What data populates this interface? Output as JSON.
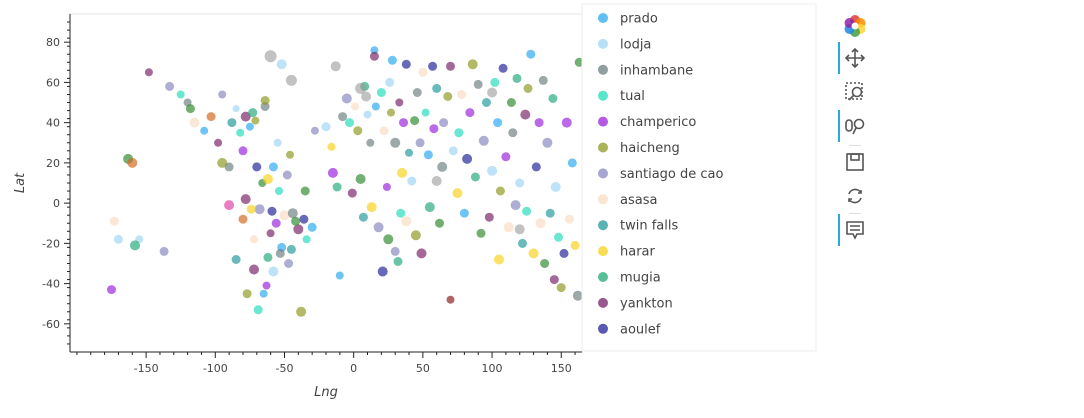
{
  "chart_data": {
    "type": "scatter",
    "xlabel": "Lng",
    "ylabel": "Lat",
    "xlim": [
      -205,
      165
    ],
    "ylim": [
      -74,
      94
    ],
    "xticks": [
      -150,
      -100,
      -50,
      0,
      50,
      100,
      150
    ],
    "yticks": [
      -60,
      -40,
      -20,
      0,
      20,
      40,
      60,
      80
    ],
    "legend_position": "right",
    "series": [
      {
        "name": "prado",
        "color": "#29aaf0"
      },
      {
        "name": "lodja",
        "color": "#9fd6f5"
      },
      {
        "name": "inhambane",
        "color": "#6e7f80"
      },
      {
        "name": "tual",
        "color": "#22dcbb"
      },
      {
        "name": "champerico",
        "color": "#9922dd"
      },
      {
        "name": "haicheng",
        "color": "#8e9a1f"
      },
      {
        "name": "santiago de cao",
        "color": "#8888c0"
      },
      {
        "name": "asasa",
        "color": "#f8dcc2"
      },
      {
        "name": "twin falls",
        "color": "#229999"
      },
      {
        "name": "harar",
        "color": "#f8d21a"
      },
      {
        "name": "mugia",
        "color": "#22aa77"
      },
      {
        "name": "yankton",
        "color": "#772266"
      },
      {
        "name": "aoulef",
        "color": "#222299"
      }
    ],
    "extra_colors": [
      "#2e8b2e",
      "#8b1a1a",
      "#e040a0",
      "#d2691e",
      "#c2185b",
      "#5a3d2b",
      "#a0522d",
      "#66aa66",
      "#7b1fa2",
      "#b0a090",
      "#ff6f61",
      "#3b7f5f"
    ],
    "points": [
      [
        15,
        76,
        8,
        0
      ],
      [
        -175,
        -43,
        9,
        4
      ],
      [
        -148,
        65,
        8,
        11
      ],
      [
        -133,
        58,
        9,
        6
      ],
      [
        -163,
        22,
        10,
        13
      ],
      [
        -160,
        20,
        10,
        16
      ],
      [
        -155,
        -18,
        8,
        1
      ],
      [
        -170,
        -18,
        9,
        1
      ],
      [
        -173,
        -9,
        9,
        7
      ],
      [
        -158,
        -21,
        10,
        10
      ],
      [
        -137,
        -24,
        9,
        6
      ],
      [
        -125,
        54,
        8,
        3
      ],
      [
        -120,
        50,
        8,
        2
      ],
      [
        -118,
        47,
        9,
        13
      ],
      [
        -115,
        40,
        10,
        7
      ],
      [
        -108,
        36,
        8,
        0
      ],
      [
        -103,
        43,
        9,
        16
      ],
      [
        -98,
        30,
        8,
        11
      ],
      [
        -95,
        20,
        10,
        5
      ],
      [
        -90,
        18,
        9,
        2
      ],
      [
        -88,
        40,
        9,
        8
      ],
      [
        -85,
        47,
        7,
        1
      ],
      [
        -82,
        35,
        8,
        3
      ],
      [
        -80,
        26,
        9,
        4
      ],
      [
        -78,
        43,
        10,
        11
      ],
      [
        -75,
        38,
        8,
        0
      ],
      [
        -73,
        45,
        9,
        10
      ],
      [
        -71,
        41,
        8,
        5
      ],
      [
        -70,
        18,
        9,
        12
      ],
      [
        -68,
        -3,
        10,
        6
      ],
      [
        -66,
        10,
        8,
        13
      ],
      [
        -64,
        48,
        9,
        2
      ],
      [
        -62,
        12,
        10,
        9
      ],
      [
        -60,
        -15,
        8,
        11
      ],
      [
        -58,
        -34,
        10,
        1
      ],
      [
        -56,
        -10,
        9,
        4
      ],
      [
        -54,
        6,
        8,
        3
      ],
      [
        -52,
        -22,
        9,
        0
      ],
      [
        -50,
        -6,
        10,
        7
      ],
      [
        -48,
        14,
        9,
        6
      ],
      [
        -46,
        24,
        8,
        5
      ],
      [
        -45,
        -23,
        9,
        8
      ],
      [
        -44,
        -5,
        10,
        2
      ],
      [
        -40,
        -13,
        10,
        11
      ],
      [
        -38,
        -54,
        10,
        5
      ],
      [
        -36,
        -8,
        9,
        12
      ],
      [
        -35,
        6,
        9,
        13
      ],
      [
        -34,
        -18,
        8,
        3
      ],
      [
        -30,
        -12,
        9,
        0
      ],
      [
        -28,
        36,
        8,
        6
      ],
      [
        -20,
        38,
        9,
        1
      ],
      [
        -16,
        28,
        8,
        9
      ],
      [
        -15,
        15,
        10,
        4
      ],
      [
        -12,
        8,
        9,
        10
      ],
      [
        -10,
        -36,
        8,
        0
      ],
      [
        -8,
        43,
        9,
        2
      ],
      [
        -5,
        52,
        10,
        6
      ],
      [
        -3,
        40,
        9,
        3
      ],
      [
        -1,
        5,
        9,
        11
      ],
      [
        1,
        48,
        8,
        7
      ],
      [
        3,
        36,
        9,
        5
      ],
      [
        5,
        12,
        10,
        13
      ],
      [
        7,
        -7,
        9,
        8
      ],
      [
        8,
        58,
        9,
        10
      ],
      [
        10,
        44,
        8,
        1
      ],
      [
        12,
        30,
        8,
        2
      ],
      [
        13,
        -2,
        10,
        9
      ],
      [
        15,
        73,
        9,
        11
      ],
      [
        16,
        48,
        8,
        0
      ],
      [
        18,
        -12,
        10,
        6
      ],
      [
        20,
        55,
        9,
        3
      ],
      [
        21,
        -34,
        10,
        12
      ],
      [
        22,
        36,
        9,
        7
      ],
      [
        24,
        8,
        8,
        4
      ],
      [
        25,
        -18,
        10,
        13
      ],
      [
        26,
        60,
        9,
        1
      ],
      [
        27,
        45,
        8,
        5
      ],
      [
        28,
        71,
        9,
        0
      ],
      [
        30,
        30,
        10,
        2
      ],
      [
        30,
        -24,
        9,
        6
      ],
      [
        32,
        -29,
        9,
        10
      ],
      [
        33,
        50,
        8,
        11
      ],
      [
        34,
        -5,
        9,
        3
      ],
      [
        35,
        15,
        10,
        9
      ],
      [
        36,
        40,
        9,
        4
      ],
      [
        38,
        69,
        9,
        12
      ],
      [
        38,
        -9,
        10,
        7
      ],
      [
        40,
        25,
        8,
        8
      ],
      [
        42,
        11,
        9,
        1
      ],
      [
        44,
        41,
        9,
        13
      ],
      [
        45,
        -16,
        10,
        5
      ],
      [
        46,
        55,
        9,
        2
      ],
      [
        48,
        30,
        9,
        6
      ],
      [
        49,
        -25,
        10,
        11
      ],
      [
        50,
        65,
        9,
        7
      ],
      [
        52,
        45,
        8,
        3
      ],
      [
        54,
        24,
        9,
        0
      ],
      [
        55,
        -2,
        10,
        10
      ],
      [
        57,
        68,
        9,
        12
      ],
      [
        58,
        37,
        9,
        4
      ],
      [
        60,
        57,
        9,
        8
      ],
      [
        62,
        -10,
        9,
        13
      ],
      [
        64,
        18,
        10,
        2
      ],
      [
        65,
        40,
        9,
        6
      ],
      [
        68,
        53,
        9,
        5
      ],
      [
        70,
        -48,
        8,
        14
      ],
      [
        70,
        68,
        9,
        11
      ],
      [
        72,
        26,
        9,
        1
      ],
      [
        75,
        5,
        10,
        9
      ],
      [
        76,
        35,
        9,
        3
      ],
      [
        78,
        54,
        9,
        7
      ],
      [
        80,
        -5,
        9,
        0
      ],
      [
        82,
        22,
        10,
        12
      ],
      [
        84,
        45,
        9,
        4
      ],
      [
        86,
        69,
        10,
        5
      ],
      [
        88,
        13,
        9,
        10
      ],
      [
        90,
        59,
        9,
        2
      ],
      [
        92,
        -15,
        9,
        13
      ],
      [
        94,
        31,
        10,
        6
      ],
      [
        96,
        50,
        9,
        8
      ],
      [
        98,
        -7,
        9,
        11
      ],
      [
        100,
        16,
        10,
        1
      ],
      [
        102,
        60,
        9,
        3
      ],
      [
        104,
        40,
        9,
        0
      ],
      [
        105,
        -28,
        10,
        9
      ],
      [
        106,
        6,
        9,
        5
      ],
      [
        108,
        67,
        9,
        12
      ],
      [
        110,
        23,
        9,
        4
      ],
      [
        112,
        -12,
        10,
        7
      ],
      [
        114,
        50,
        9,
        13
      ],
      [
        115,
        35,
        9,
        2
      ],
      [
        117,
        -1,
        10,
        6
      ],
      [
        118,
        62,
        9,
        10
      ],
      [
        120,
        10,
        9,
        1
      ],
      [
        122,
        -20,
        9,
        8
      ],
      [
        124,
        44,
        10,
        11
      ],
      [
        125,
        -4,
        9,
        3
      ],
      [
        126,
        57,
        9,
        5
      ],
      [
        128,
        74,
        9,
        0
      ],
      [
        130,
        -25,
        10,
        9
      ],
      [
        132,
        18,
        9,
        12
      ],
      [
        134,
        40,
        9,
        4
      ],
      [
        135,
        -10,
        10,
        7
      ],
      [
        137,
        61,
        9,
        2
      ],
      [
        138,
        -30,
        9,
        13
      ],
      [
        140,
        30,
        10,
        6
      ],
      [
        142,
        -5,
        9,
        8
      ],
      [
        144,
        52,
        9,
        10
      ],
      [
        145,
        -38,
        9,
        11
      ],
      [
        146,
        8,
        10,
        1
      ],
      [
        148,
        -17,
        9,
        3
      ],
      [
        150,
        -42,
        9,
        5
      ],
      [
        152,
        -25,
        9,
        12
      ],
      [
        154,
        40,
        10,
        4
      ],
      [
        156,
        -8,
        9,
        7
      ],
      [
        158,
        20,
        9,
        0
      ],
      [
        160,
        -21,
        9,
        9
      ],
      [
        162,
        -46,
        10,
        2
      ],
      [
        163,
        70,
        9,
        13
      ],
      [
        -95,
        54,
        8,
        6
      ],
      [
        -90,
        -1,
        10,
        15
      ],
      [
        -85,
        -28,
        9,
        8
      ],
      [
        -77,
        -45,
        9,
        5
      ],
      [
        -72,
        -33,
        10,
        11
      ],
      [
        -69,
        -53,
        9,
        3
      ],
      [
        -65,
        -45,
        8,
        0
      ],
      [
        -62,
        -27,
        9,
        10
      ],
      [
        -59,
        -4,
        9,
        12
      ],
      [
        -55,
        30,
        8,
        1
      ],
      [
        -53,
        -25,
        9,
        2
      ],
      [
        -47,
        -30,
        9,
        6
      ],
      [
        -42,
        -9,
        9,
        13
      ],
      [
        -63,
        -41,
        8,
        4
      ],
      [
        -72,
        -18,
        8,
        7
      ],
      [
        -74,
        -3,
        9,
        9
      ],
      [
        -80,
        -8,
        9,
        16
      ],
      [
        -78,
        2,
        10,
        11
      ],
      [
        -64,
        51,
        9,
        5
      ],
      [
        -58,
        18,
        9,
        0
      ],
      [
        -52,
        69,
        10,
        1
      ]
    ],
    "lg": [
      {
        "x": -60,
        "y": 73,
        "s": 12
      },
      {
        "x": -45,
        "y": 61,
        "s": 11
      },
      {
        "x": -13,
        "y": 68,
        "s": 10
      },
      {
        "x": 5,
        "y": 57,
        "s": 11
      },
      {
        "x": 9,
        "y": 53,
        "s": 10
      },
      {
        "x": 60,
        "y": 11,
        "s": 10
      },
      {
        "x": 100,
        "y": 55,
        "s": 10
      },
      {
        "x": 120,
        "y": -13,
        "s": 10
      }
    ]
  }
}
